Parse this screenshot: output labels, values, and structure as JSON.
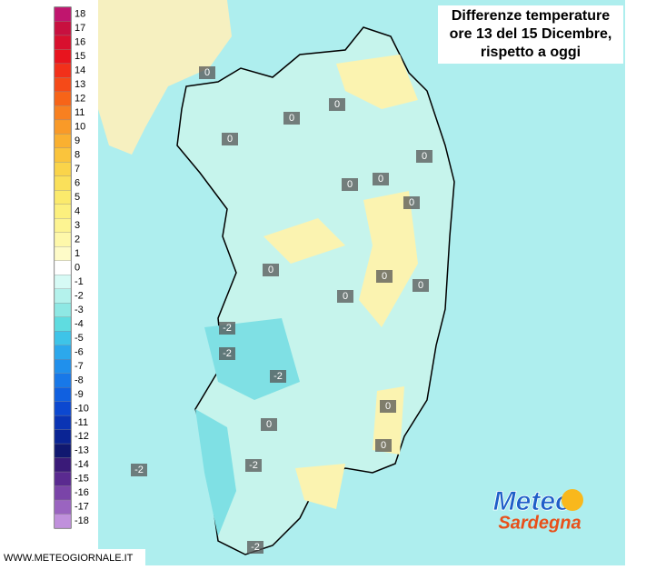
{
  "title": [
    "Differenze temperature",
    "ore 13 del 15 Dicembre,",
    "rispetto a oggi"
  ],
  "legend": {
    "labels": [
      18,
      17,
      16,
      15,
      14,
      13,
      12,
      11,
      10,
      9,
      8,
      7,
      6,
      5,
      4,
      3,
      2,
      1,
      0,
      -1,
      -2,
      -3,
      -4,
      -5,
      -6,
      -7,
      -8,
      -9,
      -10,
      -11,
      -12,
      -13,
      -14,
      -15,
      -16,
      -17,
      -18
    ],
    "colors": [
      "#c0156e",
      "#c8103f",
      "#d8102e",
      "#e8141e",
      "#f2301a",
      "#f54a18",
      "#f76418",
      "#f88020",
      "#f99a28",
      "#fab030",
      "#fac43c",
      "#fad44a",
      "#fae05a",
      "#fbea6c",
      "#fcf07e",
      "#fdf492",
      "#fef8aa",
      "#fefbc8",
      "#ffffff",
      "#d6faf5",
      "#b4f2ec",
      "#8ee8e4",
      "#5fdce0",
      "#3ec4e8",
      "#2ca8ec",
      "#2090ec",
      "#1878e8",
      "#1060e0",
      "#0c48d0",
      "#0a34b4",
      "#0a2494",
      "#101870",
      "#3a1a78",
      "#5a2a90",
      "#7a44a8",
      "#9a64c0",
      "#c090dc"
    ]
  },
  "map_labels": [
    0,
    0,
    0,
    0,
    0,
    0,
    0,
    0,
    0,
    0,
    0,
    0,
    0,
    0,
    0,
    -2,
    -2,
    -2,
    -2,
    -2,
    -2
  ],
  "logo": [
    "Meteo",
    "Sardegna"
  ],
  "footer": "WWW.METEOGIORNALE.IT"
}
